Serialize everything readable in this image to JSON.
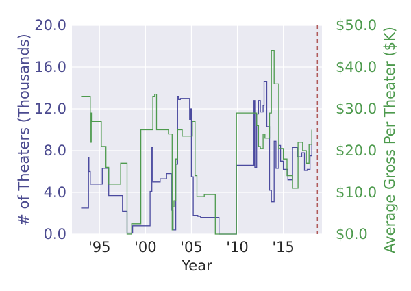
{
  "chart_data": {
    "type": "line",
    "xlabel": "Year",
    "ylabel_left": "# of Theaters (Thousands)",
    "ylabel_right": "Average Gross Per Theater ($K)",
    "xlim": [
      1992,
      2019.2
    ],
    "ylim_left": [
      0,
      20
    ],
    "ylim_right": [
      0,
      50
    ],
    "grid": true,
    "step": true,
    "x_ticks": [
      {
        "value": 1995,
        "label": "'95"
      },
      {
        "value": 2000,
        "label": "'00"
      },
      {
        "value": 2005,
        "label": "'05"
      },
      {
        "value": 2010,
        "label": "'10"
      },
      {
        "value": 2015,
        "label": "'15"
      }
    ],
    "y_ticks_left": [
      {
        "value": 0,
        "label": "0.0"
      },
      {
        "value": 4,
        "label": "4.0"
      },
      {
        "value": 8,
        "label": "8.0"
      },
      {
        "value": 12,
        "label": "12.0"
      },
      {
        "value": 16,
        "label": "16.0"
      },
      {
        "value": 20,
        "label": "20.0"
      }
    ],
    "y_ticks_right": [
      {
        "value": 0,
        "label": "$0.0"
      },
      {
        "value": 10,
        "label": "$10.0"
      },
      {
        "value": 20,
        "label": "$20.0"
      },
      {
        "value": 30,
        "label": "$30.0"
      },
      {
        "value": 40,
        "label": "$40.0"
      },
      {
        "value": 50,
        "label": "$50.0"
      }
    ],
    "reference_line": {
      "x": 2018.7,
      "color": "#b05a5a"
    },
    "series": [
      {
        "axis": "left",
        "color": "#4b4a9f",
        "x": [
          1993.0,
          1993.8,
          1993.85,
          1994.0,
          1995.3,
          1996.0,
          1997.5,
          1998.0,
          1998.6,
          2000.5,
          2000.7,
          2000.8,
          2001.6,
          2002.3,
          2002.8,
          2003.0,
          2003.3,
          2003.5,
          2003.6,
          2003.8,
          2004.8,
          2004.9,
          2005.0,
          2005.2,
          2005.7,
          2006.0,
          2008.0,
          2009.9,
          2011.8,
          2011.9,
          2012.1,
          2012.3,
          2012.5,
          2012.8,
          2012.9,
          2013.2,
          2013.5,
          2013.7,
          2014.0,
          2014.2,
          2014.5,
          2014.7,
          2015.0,
          2015.5,
          2016.0,
          2016.5,
          2017.0,
          2017.3,
          2017.6,
          2017.9,
          2018.1
        ],
        "y": [
          2.5,
          7.3,
          6.0,
          4.8,
          6.3,
          3.7,
          2.2,
          0.1,
          0.8,
          4.1,
          8.3,
          5.0,
          5.3,
          5.8,
          2.3,
          0.4,
          6.7,
          13.2,
          12.9,
          13.0,
          11.0,
          12.0,
          5.5,
          1.8,
          1.7,
          1.6,
          0.0,
          6.6,
          12.8,
          6.4,
          11.5,
          12.8,
          11.7,
          12.3,
          14.6,
          10.3,
          4.2,
          3.1,
          8.9,
          6.3,
          8.5,
          7.0,
          6.2,
          5.2,
          8.3,
          7.4,
          7.8,
          6.1,
          6.2,
          7.5,
          9.9
        ]
      },
      {
        "axis": "right",
        "color": "#4d9a4d",
        "x": [
          1993.0,
          1994.0,
          1994.1,
          1994.2,
          1995.2,
          1995.7,
          1996.0,
          1997.3,
          1998.0,
          1998.5,
          1999.5,
          2000.8,
          2001.0,
          2001.2,
          2002.5,
          2002.9,
          2003.0,
          2003.1,
          2003.3,
          2003.5,
          2004.0,
          2004.8,
          2005.1,
          2005.4,
          2005.6,
          2006.4,
          2007.6,
          2009.9,
          2012.1,
          2012.3,
          2012.5,
          2012.8,
          2013.0,
          2013.5,
          2013.7,
          2014.0,
          2014.5,
          2015.0,
          2015.4,
          2016.0,
          2016.6,
          2017.1,
          2017.5,
          2017.8,
          2018.1
        ],
        "y": [
          33.0,
          22.0,
          29.0,
          27.0,
          21.0,
          16.0,
          12.0,
          17.0,
          0.0,
          2.5,
          25.0,
          33.0,
          33.5,
          25.0,
          24.0,
          1.0,
          6.5,
          8.0,
          18.0,
          25.0,
          23.5,
          23.5,
          27.0,
          14.0,
          9.0,
          9.5,
          0.0,
          29.0,
          26.0,
          21.0,
          20.5,
          24.0,
          23.0,
          29.0,
          44.0,
          36.0,
          20.5,
          18.0,
          14.0,
          11.0,
          22.0,
          20.0,
          17.0,
          21.5,
          25.0
        ]
      }
    ]
  }
}
